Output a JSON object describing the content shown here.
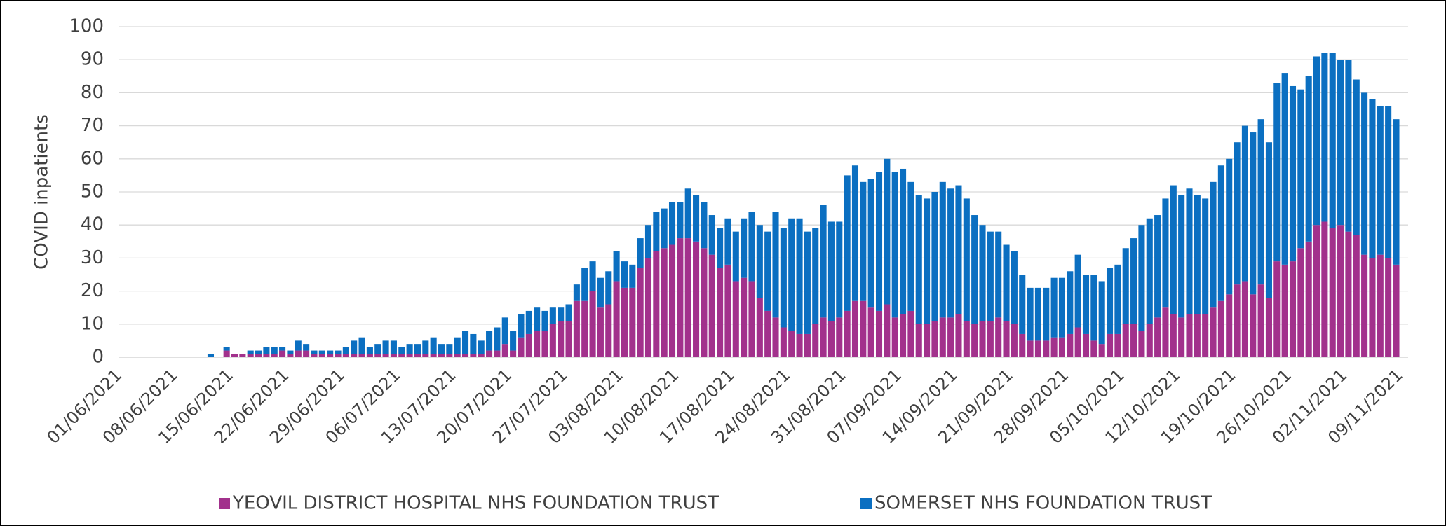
{
  "chart_data": {
    "type": "stacked_bar",
    "y_label": "COVID inpatients",
    "categories": [
      "01/06/2021",
      null,
      null,
      null,
      null,
      null,
      null,
      "08/06/2021",
      null,
      null,
      null,
      null,
      null,
      null,
      "15/06/2021",
      null,
      null,
      null,
      null,
      null,
      null,
      "22/06/2021",
      null,
      null,
      null,
      null,
      null,
      null,
      "29/06/2021",
      null,
      null,
      null,
      null,
      null,
      null,
      "06/07/2021",
      null,
      null,
      null,
      null,
      null,
      null,
      "13/07/2021",
      null,
      null,
      null,
      null,
      null,
      null,
      "20/07/2021",
      null,
      null,
      null,
      null,
      null,
      null,
      "27/07/2021",
      null,
      null,
      null,
      null,
      null,
      null,
      "03/08/2021",
      null,
      null,
      null,
      null,
      null,
      null,
      "10/08/2021",
      null,
      null,
      null,
      null,
      null,
      null,
      "17/08/2021",
      null,
      null,
      null,
      null,
      null,
      null,
      "24/08/2021",
      null,
      null,
      null,
      null,
      null,
      null,
      "31/08/2021",
      null,
      null,
      null,
      null,
      null,
      null,
      "07/09/2021",
      null,
      null,
      null,
      null,
      null,
      null,
      "14/09/2021",
      null,
      null,
      null,
      null,
      null,
      null,
      "21/09/2021",
      null,
      null,
      null,
      null,
      null,
      null,
      "28/09/2021",
      null,
      null,
      null,
      null,
      null,
      null,
      "05/10/2021",
      null,
      null,
      null,
      null,
      null,
      null,
      "12/10/2021",
      null,
      null,
      null,
      null,
      null,
      null,
      "19/10/2021",
      null,
      null,
      null,
      null,
      null,
      null,
      "26/10/2021",
      null,
      null,
      null,
      null,
      null,
      null,
      "02/11/2021",
      null,
      null,
      null,
      null,
      null,
      null,
      "09/11/2021"
    ],
    "series": [
      {
        "name": "YEOVIL DISTRICT HOSPITAL NHS FOUNDATION TRUST",
        "color": "#a2318c",
        "values": [
          0,
          0,
          0,
          0,
          0,
          0,
          0,
          0,
          0,
          0,
          0,
          0,
          0,
          2,
          1,
          1,
          1,
          1,
          1,
          1,
          2,
          1,
          2,
          2,
          1,
          1,
          1,
          1,
          1,
          1,
          1,
          1,
          1,
          1,
          1,
          1,
          1,
          1,
          1,
          1,
          1,
          1,
          1,
          1,
          1,
          1,
          2,
          2,
          4,
          2,
          6,
          7,
          8,
          8,
          10,
          11,
          11,
          17,
          17,
          20,
          15,
          16,
          23,
          21,
          21,
          27,
          30,
          32,
          33,
          34,
          36,
          36,
          35,
          33,
          31,
          27,
          28,
          23,
          24,
          23,
          18,
          14,
          12,
          9,
          8,
          7,
          7,
          10,
          12,
          11,
          12,
          14,
          17,
          17,
          15,
          14,
          16,
          12,
          13,
          14,
          10,
          10,
          11,
          12,
          12,
          13,
          11,
          10,
          11,
          11,
          12,
          11,
          10,
          7,
          5,
          5,
          5,
          6,
          6,
          7,
          9,
          7,
          5,
          4,
          7,
          7,
          10,
          10,
          8,
          10,
          12,
          15,
          13,
          12,
          13,
          13,
          13,
          15,
          17,
          19,
          22,
          23,
          19,
          22,
          18,
          29,
          28,
          29,
          33,
          35,
          40,
          41,
          39,
          40,
          38,
          37,
          31,
          30,
          31,
          30,
          28,
          null
        ]
      },
      {
        "name": "SOMERSET NHS FOUNDATION TRUST",
        "color": "#0b6fc1",
        "values": [
          0,
          0,
          0,
          0,
          0,
          0,
          0,
          0,
          0,
          0,
          0,
          1,
          0,
          1,
          0,
          0,
          1,
          1,
          2,
          2,
          1,
          1,
          3,
          2,
          1,
          1,
          1,
          1,
          2,
          4,
          5,
          2,
          3,
          4,
          4,
          2,
          3,
          3,
          4,
          5,
          3,
          3,
          5,
          7,
          6,
          4,
          6,
          7,
          8,
          6,
          7,
          7,
          7,
          6,
          5,
          4,
          5,
          5,
          10,
          9,
          9,
          10,
          9,
          8,
          7,
          9,
          10,
          12,
          12,
          13,
          11,
          15,
          14,
          14,
          12,
          12,
          14,
          15,
          18,
          21,
          22,
          24,
          32,
          30,
          34,
          35,
          31,
          29,
          34,
          30,
          29,
          41,
          41,
          36,
          39,
          42,
          44,
          44,
          44,
          39,
          39,
          38,
          39,
          41,
          39,
          39,
          37,
          33,
          29,
          27,
          26,
          23,
          22,
          18,
          16,
          16,
          16,
          18,
          18,
          19,
          22,
          18,
          20,
          19,
          20,
          21,
          23,
          26,
          32,
          32,
          31,
          33,
          39,
          37,
          38,
          36,
          35,
          38,
          41,
          41,
          43,
          47,
          49,
          50,
          47,
          54,
          58,
          53,
          48,
          50,
          51,
          51,
          53,
          50,
          52,
          47,
          49,
          48,
          45,
          46,
          44,
          null
        ]
      }
    ],
    "ylim": [
      0,
      100
    ],
    "yticks": [
      0,
      10,
      20,
      30,
      40,
      50,
      60,
      70,
      80,
      90,
      100
    ],
    "grid": true,
    "legend": "bottom"
  }
}
